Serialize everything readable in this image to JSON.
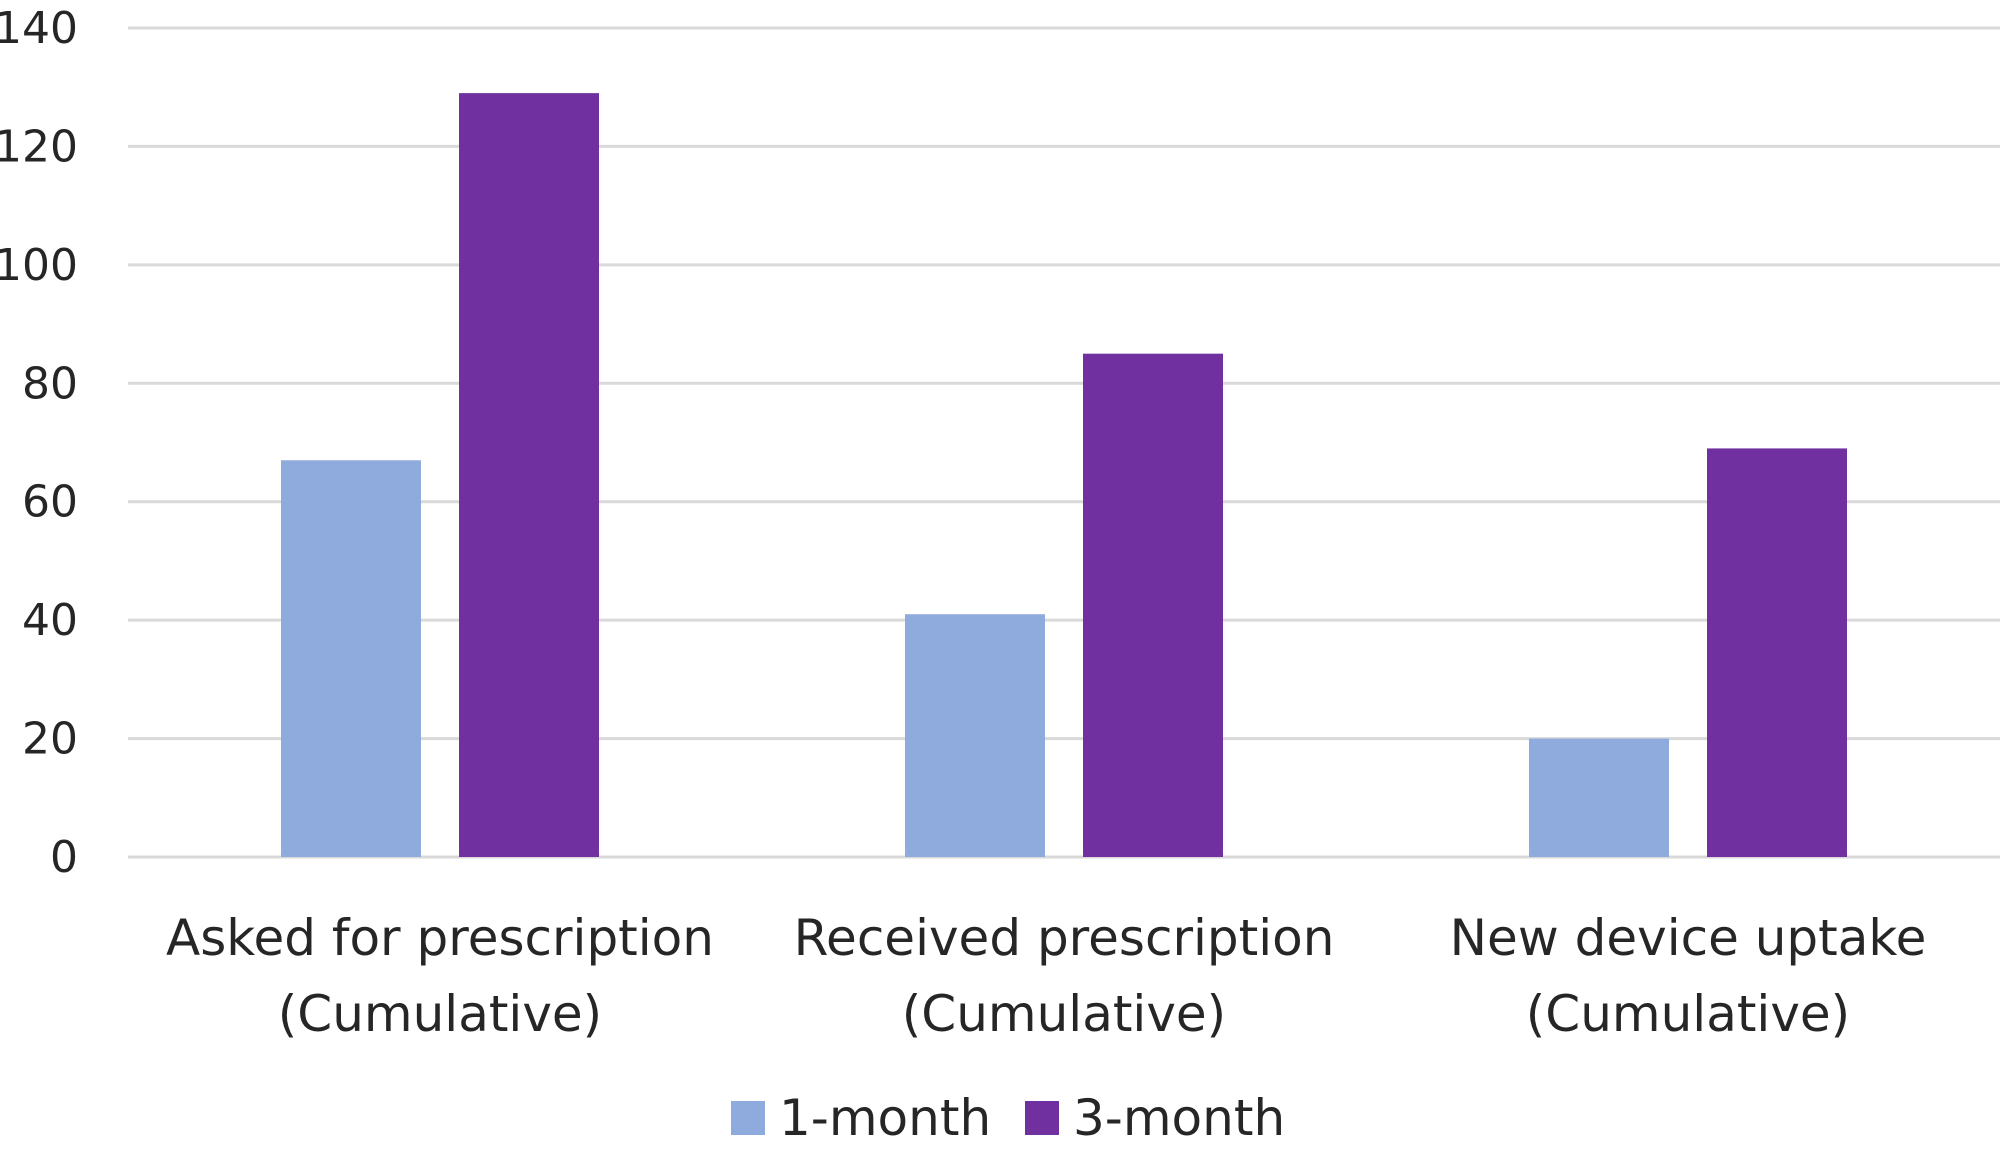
{
  "chart_data": {
    "type": "bar",
    "categories": [
      [
        "Asked for prescription",
        "(Cumulative)"
      ],
      [
        "Received prescription",
        "(Cumulative)"
      ],
      [
        "New device uptake",
        "(Cumulative)"
      ]
    ],
    "series": [
      {
        "name": "1-month",
        "color": "#8faadc",
        "values": [
          67,
          41,
          20
        ]
      },
      {
        "name": "3-month",
        "color": "#7030a0",
        "values": [
          129,
          85,
          69
        ]
      }
    ],
    "ylim": [
      0,
      140
    ],
    "yticks": [
      "0",
      "20",
      "40",
      "60",
      "80",
      "100",
      "120",
      "140"
    ],
    "grid": true,
    "gridColor": "#d9d9d9",
    "legend_position": "bottom"
  }
}
